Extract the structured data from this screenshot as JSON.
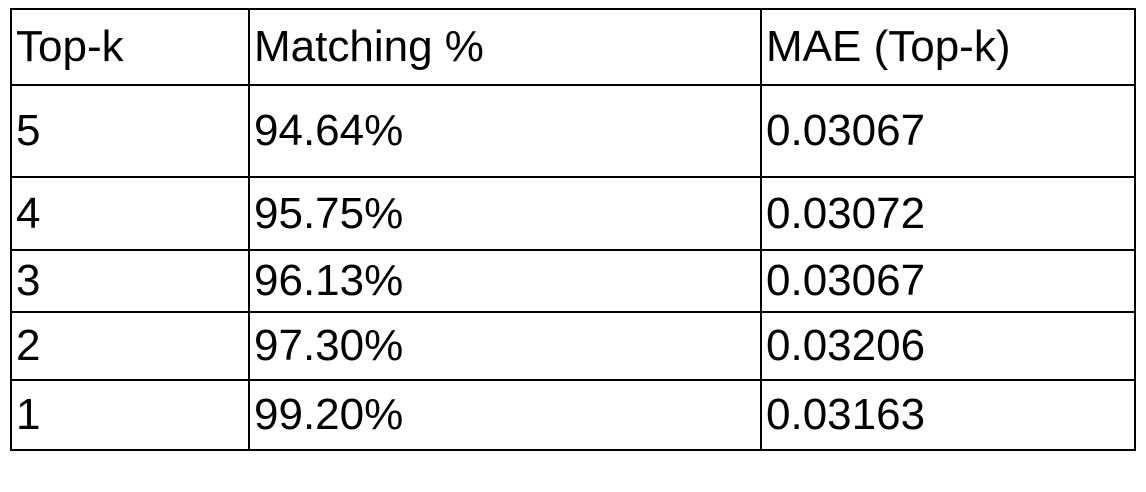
{
  "table": {
    "headers": [
      "Top-k",
      "Matching %",
      "MAE (Top-k)"
    ],
    "rows": [
      [
        "5",
        "94.64%",
        "0.03067"
      ],
      [
        "4",
        "95.75%",
        "0.03072"
      ],
      [
        "3",
        "96.13%",
        "0.03067"
      ],
      [
        "2",
        "97.30%",
        "0.03206"
      ],
      [
        "1",
        "99.20%",
        "0.03163"
      ]
    ]
  }
}
